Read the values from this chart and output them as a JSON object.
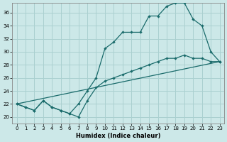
{
  "xlabel": "Humidex (Indice chaleur)",
  "bg_color": "#cce8e8",
  "line_color": "#1a6b6b",
  "grid_color": "#aad0d0",
  "xlim": [
    -0.5,
    23.5
  ],
  "ylim": [
    19.0,
    37.5
  ],
  "yticks": [
    20,
    22,
    24,
    26,
    28,
    30,
    32,
    34,
    36
  ],
  "xticks": [
    0,
    1,
    2,
    3,
    4,
    5,
    6,
    7,
    8,
    9,
    10,
    11,
    12,
    13,
    14,
    15,
    16,
    17,
    18,
    19,
    20,
    21,
    22,
    23
  ],
  "line1_marked": {
    "x": [
      0,
      1,
      2,
      3,
      4,
      5,
      6,
      7,
      8,
      9,
      10,
      11,
      12,
      13,
      14,
      15,
      16,
      17,
      18,
      19,
      20,
      21,
      22,
      23
    ],
    "y": [
      22,
      21.5,
      21,
      22.5,
      21.5,
      21,
      20.5,
      22,
      24,
      26,
      30.5,
      31.5,
      33,
      33,
      33,
      35.5,
      35.5,
      37,
      37.5,
      37.5,
      35,
      34,
      30,
      28.5
    ]
  },
  "line2_plain": {
    "x": [
      0,
      23
    ],
    "y": [
      22,
      28.5
    ]
  },
  "line3_marked": {
    "x": [
      0,
      1,
      2,
      3,
      4,
      5,
      6,
      7,
      8,
      9,
      10,
      11,
      12,
      13,
      14,
      15,
      16,
      17,
      18,
      19,
      20,
      21,
      22,
      23
    ],
    "y": [
      22,
      21.5,
      21,
      22.5,
      21.5,
      21,
      20.5,
      20,
      22.5,
      24.5,
      25.5,
      26,
      26.5,
      27,
      27.5,
      28,
      28.5,
      29,
      29,
      29.5,
      29,
      29,
      28.5,
      28.5
    ]
  }
}
